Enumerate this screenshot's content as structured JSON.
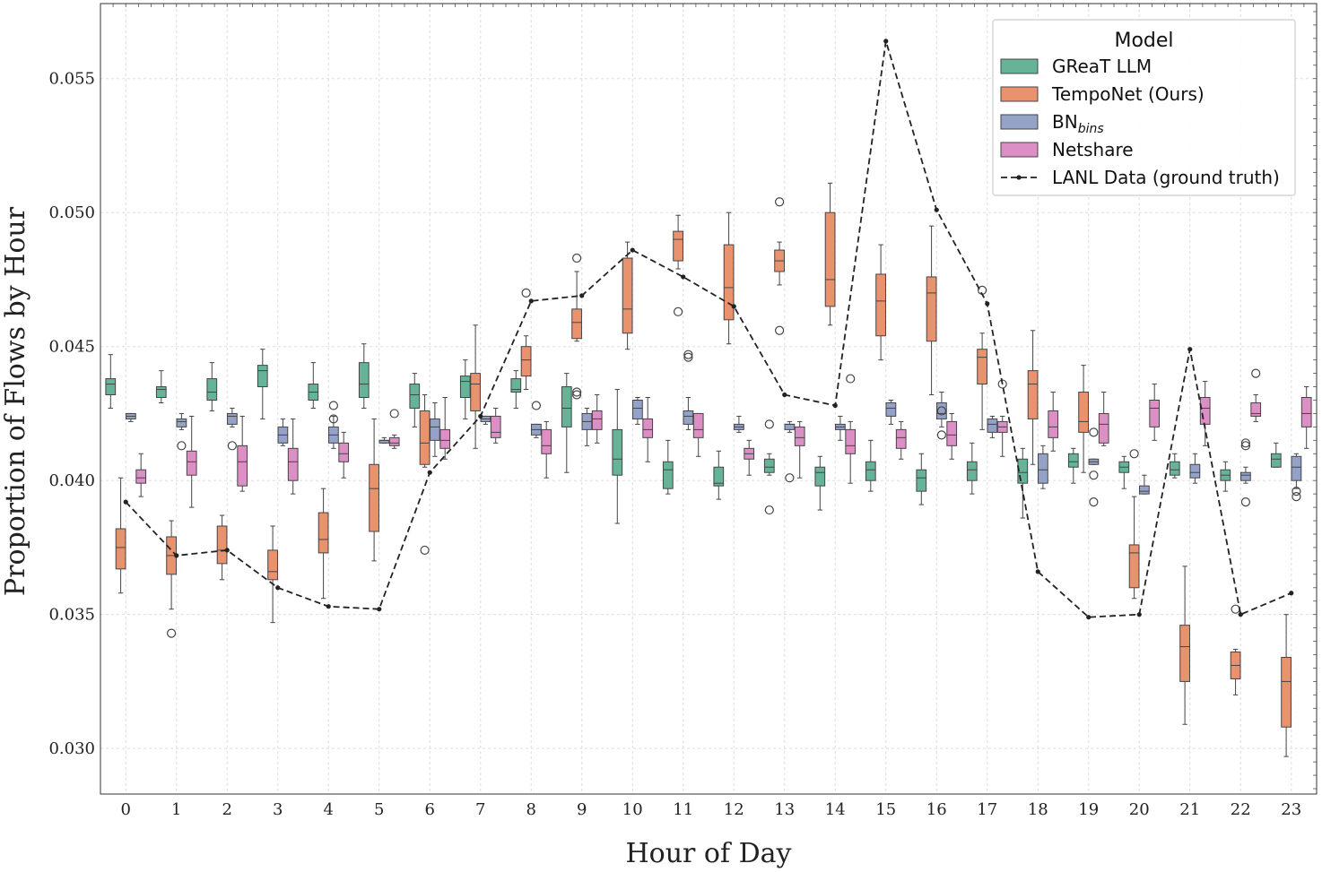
{
  "chart_data": {
    "type": "box",
    "xlabel": "Hour of Day",
    "ylabel": "Proportion of Flows by Hour",
    "categories": [
      "0",
      "1",
      "2",
      "3",
      "4",
      "5",
      "6",
      "7",
      "8",
      "9",
      "10",
      "11",
      "12",
      "13",
      "14",
      "15",
      "16",
      "17",
      "18",
      "19",
      "20",
      "21",
      "22",
      "23"
    ],
    "ylim": [
      0.0283,
      0.0578
    ],
    "yticks": [
      "0.030",
      "0.035",
      "0.040",
      "0.045",
      "0.050",
      "0.055"
    ],
    "legend": {
      "title": "Model",
      "placement": "top-right",
      "entries": [
        {
          "label": "GReaT LLM",
          "kind": "box",
          "color": "#66b397"
        },
        {
          "label": "TempoNet (Ours)",
          "kind": "box",
          "color": "#e9936e"
        },
        {
          "label": "BN",
          "sub": "bins",
          "kind": "box",
          "color": "#95a2c8"
        },
        {
          "label": "Netshare",
          "kind": "box",
          "color": "#dc8fc4"
        },
        {
          "label": "LANL Data (ground truth)",
          "kind": "line",
          "color": "#222222"
        }
      ]
    },
    "series": [
      {
        "name": "GReaT LLM",
        "color": "#66b397",
        "boxes": [
          [
            0.0427,
            0.0432,
            0.0436,
            0.0438,
            0.0447
          ],
          [
            0.0429,
            0.0431,
            0.0434,
            0.0435,
            0.0441
          ],
          [
            0.0426,
            0.043,
            0.0433,
            0.0438,
            0.0444
          ],
          [
            0.0423,
            0.0435,
            0.0441,
            0.0443,
            0.0449
          ],
          [
            0.0427,
            0.043,
            0.0433,
            0.0436,
            0.0444
          ],
          [
            0.0427,
            0.0431,
            0.0436,
            0.0444,
            0.0451
          ],
          [
            0.042,
            0.0427,
            0.0432,
            0.0436,
            0.044
          ],
          [
            0.0423,
            0.0431,
            0.0437,
            0.0439,
            0.0445
          ],
          [
            0.0427,
            0.0433,
            0.0434,
            0.0438,
            0.0441
          ],
          [
            0.0403,
            0.042,
            0.0427,
            0.0435,
            0.044
          ],
          [
            0.0384,
            0.0402,
            0.0408,
            0.0419,
            0.0434
          ],
          [
            0.0395,
            0.0397,
            0.0404,
            0.0407,
            0.0415
          ],
          [
            0.0393,
            0.0398,
            0.0399,
            0.0405,
            0.0411
          ],
          [
            0.0402,
            0.0403,
            0.0405,
            0.0408,
            0.041
          ],
          [
            0.0389,
            0.0398,
            0.0403,
            0.0405,
            0.0409
          ],
          [
            0.0396,
            0.04,
            0.0404,
            0.0407,
            0.0415
          ],
          [
            0.0391,
            0.0396,
            0.0401,
            0.0404,
            0.041
          ],
          [
            0.0395,
            0.04,
            0.0404,
            0.0407,
            0.0414
          ],
          [
            0.0386,
            0.0399,
            0.0403,
            0.0408,
            0.0412
          ],
          [
            0.0399,
            0.0405,
            0.0407,
            0.041,
            0.0412
          ],
          [
            0.0397,
            0.0403,
            0.0405,
            0.0407,
            0.0409
          ],
          [
            0.0401,
            0.0402,
            0.0404,
            0.0407,
            0.041
          ],
          [
            0.0396,
            0.04,
            0.0402,
            0.0404,
            0.0407
          ],
          [
            0.0405,
            0.0405,
            0.0408,
            0.041,
            0.0414
          ]
        ],
        "outliers": [
          [],
          [],
          [],
          [],
          [],
          [],
          [],
          [],
          [],
          [],
          [],
          [],
          [],
          [
            0.0389,
            0.0421
          ],
          [],
          [],
          [],
          [],
          [],
          [],
          [],
          [],
          [],
          []
        ]
      },
      {
        "name": "TempoNet (Ours)",
        "color": "#e9936e",
        "boxes": [
          [
            0.0358,
            0.0367,
            0.0375,
            0.0382,
            0.0401
          ],
          [
            0.0352,
            0.0365,
            0.0372,
            0.0379,
            0.0385
          ],
          [
            0.0363,
            0.0369,
            0.0374,
            0.0383,
            0.0387
          ],
          [
            0.0347,
            0.0363,
            0.0366,
            0.0374,
            0.0383
          ],
          [
            0.0356,
            0.0373,
            0.0378,
            0.0388,
            0.0397
          ],
          [
            0.037,
            0.0381,
            0.0397,
            0.0406,
            0.0423
          ],
          [
            0.0405,
            0.0406,
            0.0414,
            0.0426,
            0.0432
          ],
          [
            0.0412,
            0.0426,
            0.0436,
            0.044,
            0.0458
          ],
          [
            0.0434,
            0.0439,
            0.0445,
            0.045,
            0.0454
          ],
          [
            0.0452,
            0.0453,
            0.0459,
            0.0464,
            0.0478
          ],
          [
            0.0449,
            0.0455,
            0.0464,
            0.0483,
            0.0489
          ],
          [
            0.0479,
            0.0482,
            0.049,
            0.0493,
            0.0499
          ],
          [
            0.0451,
            0.046,
            0.0472,
            0.0488,
            0.05
          ],
          [
            0.0473,
            0.0478,
            0.0482,
            0.0486,
            0.0489
          ],
          [
            0.0458,
            0.0465,
            0.0475,
            0.05,
            0.0511
          ],
          [
            0.0445,
            0.0454,
            0.0467,
            0.0477,
            0.0488
          ],
          [
            0.0432,
            0.0452,
            0.047,
            0.0476,
            0.0495
          ],
          [
            0.0419,
            0.0436,
            0.0446,
            0.0449,
            0.0455
          ],
          [
            0.0406,
            0.0423,
            0.0436,
            0.0441,
            0.0456
          ],
          [
            0.0403,
            0.0418,
            0.0422,
            0.0433,
            0.0443
          ],
          [
            0.0356,
            0.036,
            0.0373,
            0.0376,
            0.0394
          ],
          [
            0.0309,
            0.0325,
            0.0338,
            0.0346,
            0.0368
          ],
          [
            0.032,
            0.0326,
            0.0331,
            0.0336,
            0.0337
          ],
          [
            0.0297,
            0.0308,
            0.0325,
            0.0334,
            0.035
          ]
        ],
        "outliers": [
          [],
          [
            0.0343
          ],
          [],
          [],
          [],
          [],
          [
            0.0374
          ],
          [],
          [
            0.047
          ],
          [
            0.0483,
            0.0433,
            0.0432
          ],
          [],
          [
            0.0463
          ],
          [],
          [
            0.0504,
            0.0456
          ],
          [],
          [],
          [],
          [
            0.0471
          ],
          [],
          [],
          [
            0.041
          ],
          [],
          [
            0.0352
          ],
          []
        ]
      },
      {
        "name": "BN bins",
        "color": "#95a2c8",
        "boxes": [
          [
            0.0422,
            0.0423,
            0.0424,
            0.0425,
            0.0425
          ],
          [
            0.0419,
            0.042,
            0.0422,
            0.0423,
            0.0425
          ],
          [
            0.042,
            0.0421,
            0.0424,
            0.0425,
            0.0427
          ],
          [
            0.0413,
            0.0414,
            0.0417,
            0.042,
            0.0423
          ],
          [
            0.0412,
            0.0414,
            0.0417,
            0.042,
            0.0424
          ],
          [
            0.0414,
            0.0414,
            0.0415,
            0.0415,
            0.0416
          ],
          [
            0.0409,
            0.0415,
            0.042,
            0.0423,
            0.0429
          ],
          [
            0.0421,
            0.0422,
            0.0423,
            0.0424,
            0.0424
          ],
          [
            0.0416,
            0.0417,
            0.0419,
            0.0421,
            0.0421
          ],
          [
            0.0413,
            0.0419,
            0.0422,
            0.0425,
            0.0427
          ],
          [
            0.0421,
            0.0423,
            0.0427,
            0.043,
            0.0431
          ],
          [
            0.0419,
            0.0421,
            0.0424,
            0.0426,
            0.0431
          ],
          [
            0.0418,
            0.0419,
            0.042,
            0.0421,
            0.0424
          ],
          [
            0.0418,
            0.0419,
            0.0421,
            0.0421,
            0.0422
          ],
          [
            0.0415,
            0.0419,
            0.042,
            0.0421,
            0.0424
          ],
          [
            0.0421,
            0.0424,
            0.0427,
            0.0429,
            0.043
          ],
          [
            0.042,
            0.0423,
            0.0425,
            0.0429,
            0.0433
          ],
          [
            0.0416,
            0.0418,
            0.0421,
            0.0423,
            0.0424
          ],
          [
            0.0397,
            0.0399,
            0.0404,
            0.041,
            0.0413
          ],
          [
            0.0406,
            0.0406,
            0.0407,
            0.0408,
            0.0408
          ],
          [
            0.0395,
            0.0395,
            0.0396,
            0.0398,
            0.0402
          ],
          [
            0.0399,
            0.0401,
            0.0403,
            0.0406,
            0.041
          ],
          [
            0.0399,
            0.04,
            0.0402,
            0.0403,
            0.0405
          ],
          [
            0.0397,
            0.04,
            0.0405,
            0.0409,
            0.041
          ]
        ],
        "outliers": [
          [],
          [
            0.0413
          ],
          [
            0.0413
          ],
          [],
          [
            0.0428,
            0.0423
          ],
          [],
          [],
          [],
          [
            0.0428
          ],
          [],
          [],
          [
            0.0447,
            0.0446
          ],
          [],
          [
            0.0401
          ],
          [],
          [],
          [
            0.0426,
            0.0417
          ],
          [],
          [],
          [
            0.0418,
            0.0392,
            0.0402
          ],
          [],
          [],
          [
            0.0414,
            0.0413,
            0.0392
          ],
          [
            0.0396,
            0.0394
          ]
        ]
      },
      {
        "name": "Netshare",
        "color": "#dc8fc4",
        "boxes": [
          [
            0.0394,
            0.0399,
            0.0401,
            0.0404,
            0.041
          ],
          [
            0.039,
            0.0402,
            0.0407,
            0.0411,
            0.0424
          ],
          [
            0.0396,
            0.0398,
            0.0407,
            0.0413,
            0.0424
          ],
          [
            0.0395,
            0.04,
            0.0407,
            0.0412,
            0.0423
          ],
          [
            0.0401,
            0.0407,
            0.041,
            0.0414,
            0.0418
          ],
          [
            0.0412,
            0.0413,
            0.0414,
            0.0416,
            0.0417
          ],
          [
            0.0408,
            0.0412,
            0.0415,
            0.0419,
            0.0431
          ],
          [
            0.0414,
            0.0416,
            0.0418,
            0.0424,
            0.0427
          ],
          [
            0.0401,
            0.041,
            0.0413,
            0.0419,
            0.0422
          ],
          [
            0.0414,
            0.0419,
            0.0423,
            0.0426,
            0.0432
          ],
          [
            0.0407,
            0.0416,
            0.0419,
            0.0423,
            0.0431
          ],
          [
            0.0409,
            0.0416,
            0.0419,
            0.0425,
            0.0425
          ],
          [
            0.0402,
            0.0408,
            0.041,
            0.0412,
            0.0415
          ],
          [
            0.0401,
            0.0413,
            0.0416,
            0.042,
            0.0422
          ],
          [
            0.0399,
            0.041,
            0.0413,
            0.0419,
            0.0422
          ],
          [
            0.0408,
            0.0412,
            0.0416,
            0.0419,
            0.0422
          ],
          [
            0.0408,
            0.0413,
            0.0417,
            0.0422,
            0.0425
          ],
          [
            0.0409,
            0.0418,
            0.042,
            0.0422,
            0.0424
          ],
          [
            0.0411,
            0.0416,
            0.042,
            0.0426,
            0.0433
          ],
          [
            0.0413,
            0.0414,
            0.0421,
            0.0425,
            0.0433
          ],
          [
            0.0415,
            0.042,
            0.0427,
            0.043,
            0.0436
          ],
          [
            0.0413,
            0.0421,
            0.0427,
            0.0431,
            0.0437
          ],
          [
            0.0422,
            0.0424,
            0.0425,
            0.0429,
            0.0432
          ],
          [
            0.0412,
            0.042,
            0.0425,
            0.0431,
            0.0435
          ]
        ],
        "outliers": [
          [],
          [],
          [],
          [],
          [],
          [
            0.0425
          ],
          [],
          [],
          [],
          [],
          [],
          [],
          [],
          [],
          [
            0.0438
          ],
          [],
          [],
          [
            0.0436
          ],
          [],
          [],
          [],
          [],
          [
            0.044
          ],
          []
        ]
      }
    ],
    "line": {
      "name": "LANL Data (ground truth)",
      "color": "#222222",
      "values": [
        0.0392,
        0.0372,
        0.0374,
        0.036,
        0.0353,
        0.0352,
        0.0403,
        0.0424,
        0.0467,
        0.0469,
        0.0486,
        0.0476,
        0.0465,
        0.0432,
        0.0428,
        0.0564,
        0.0501,
        0.0466,
        0.0366,
        0.0349,
        0.035,
        0.0449,
        0.035,
        0.0358
      ]
    }
  }
}
